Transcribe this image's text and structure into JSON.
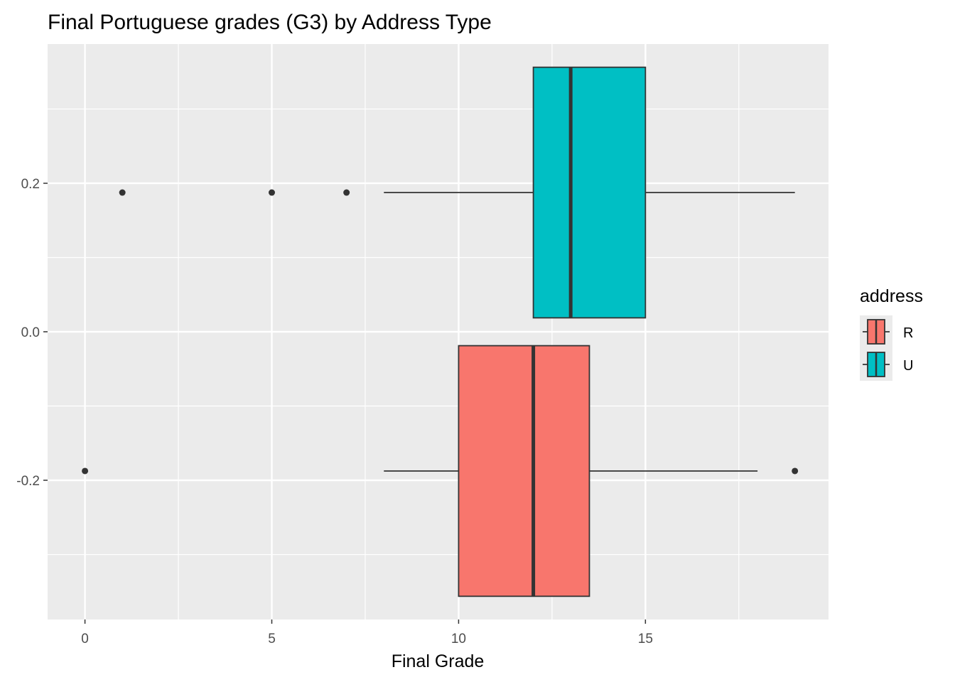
{
  "chart_data": {
    "type": "boxplot",
    "title": "Final Portuguese grades (G3) by Address Type",
    "xlabel": "Final Grade",
    "ylabel": "",
    "xlim": [
      -1,
      19.9
    ],
    "ylim": [
      -0.3875,
      0.3875
    ],
    "x_ticks": [
      0,
      5,
      10,
      15
    ],
    "y_ticks": [
      -0.2,
      0.0,
      0.2
    ],
    "y_tick_labels": [
      "-0.2",
      "0.0",
      "0.2"
    ],
    "grid": true,
    "legend": {
      "title": "address",
      "position": "right",
      "entries": [
        {
          "label": "R",
          "color": "#F8766D"
        },
        {
          "label": "U",
          "color": "#00BFC4"
        }
      ]
    },
    "series": [
      {
        "name": "R",
        "color": "#F8766D",
        "y_center": -0.1875,
        "y_halfwidth": 0.16875,
        "whisker_low": 8,
        "q1": 10,
        "median": 12,
        "q3": 13.5,
        "whisker_high": 18,
        "outliers": [
          0,
          19
        ]
      },
      {
        "name": "U",
        "color": "#00BFC4",
        "y_center": 0.1875,
        "y_halfwidth": 0.16875,
        "whisker_low": 8,
        "q1": 12,
        "median": 13,
        "q3": 15,
        "whisker_high": 19,
        "outliers": [
          1,
          5,
          7
        ]
      }
    ]
  }
}
